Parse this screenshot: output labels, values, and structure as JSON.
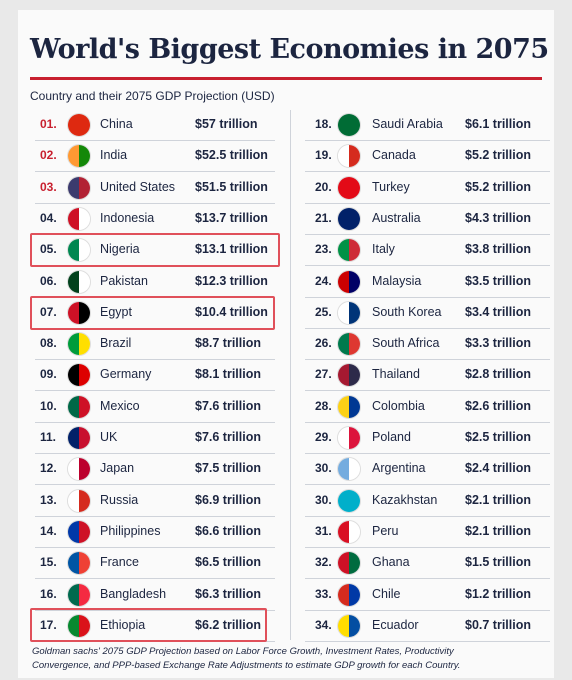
{
  "header": {
    "title": "World's Biggest Economies in 2075",
    "subtitle": "Country and their 2075 GDP Projection (USD)"
  },
  "table": {
    "left": {
      "rows": [
        [
          "01.",
          "China",
          "$57 trillion"
        ],
        [
          "02.",
          "India",
          "$52.5 trillion"
        ],
        [
          "03.",
          "United States",
          "$51.5 trillion"
        ],
        [
          "04.",
          "Indonesia",
          "$13.7 trillion"
        ],
        [
          "05.",
          "Nigeria",
          "$13.1 trillion"
        ],
        [
          "06.",
          "Pakistan",
          "$12.3 trillion"
        ],
        [
          "07.",
          "Egypt",
          "$10.4 trillion"
        ],
        [
          "08.",
          "Brazil",
          "$8.7 trillion"
        ],
        [
          "09.",
          "Germany",
          "$8.1 trillion"
        ],
        [
          "10.",
          "Mexico",
          "$7.6 trillion"
        ],
        [
          "11.",
          "UK",
          "$7.6 trillion"
        ],
        [
          "12.",
          "Japan",
          "$7.5 trillion"
        ],
        [
          "13.",
          "Russia",
          "$6.9 trillion"
        ],
        [
          "14.",
          "Philippines",
          "$6.6 trillion"
        ],
        [
          "15.",
          "France",
          "$6.5 trillion"
        ],
        [
          "16.",
          "Bangladesh",
          "$6.3 trillion"
        ],
        [
          "17.",
          "Ethiopia",
          "$6.2 trillion"
        ]
      ]
    },
    "right": {
      "rows": [
        [
          "18.",
          "Saudi Arabia",
          "$6.1 trillion"
        ],
        [
          "19.",
          "Canada",
          "$5.2 trillion"
        ],
        [
          "20.",
          "Turkey",
          "$5.2 trillion"
        ],
        [
          "21.",
          "Australia",
          "$4.3 trillion"
        ],
        [
          "23.",
          "Italy",
          "$3.8 trillion"
        ],
        [
          "24.",
          "Malaysia",
          "$3.5 trillion"
        ],
        [
          "25.",
          "South Korea",
          "$3.4 trillion"
        ],
        [
          "26.",
          "South Africa",
          "$3.3 trillion"
        ],
        [
          "27.",
          "Thailand",
          "$2.8 trillion"
        ],
        [
          "28.",
          "Colombia",
          "$2.6 trillion"
        ],
        [
          "29.",
          "Poland",
          "$2.5 trillion"
        ],
        [
          "30.",
          "Argentina",
          "$2.4 trillion"
        ],
        [
          "30.",
          "Kazakhstan",
          "$2.1 trillion"
        ],
        [
          "31.",
          "Peru",
          "$2.1 trillion"
        ],
        [
          "32.",
          "Ghana",
          "$1.5 trillion"
        ],
        [
          "33.",
          "Chile",
          "$1.2 trillion"
        ],
        [
          "34.",
          "Ecuador",
          "$0.7 trillion"
        ]
      ]
    }
  },
  "footnote": {
    "line1": "Goldman sachs' 2075 GDP Projection based on Labor Force Growth, Investment Rates, Productivity",
    "line2": "Convergence, and PPP-based Exchange Rate Adjustments to estimate GDP growth for each Country."
  }
}
